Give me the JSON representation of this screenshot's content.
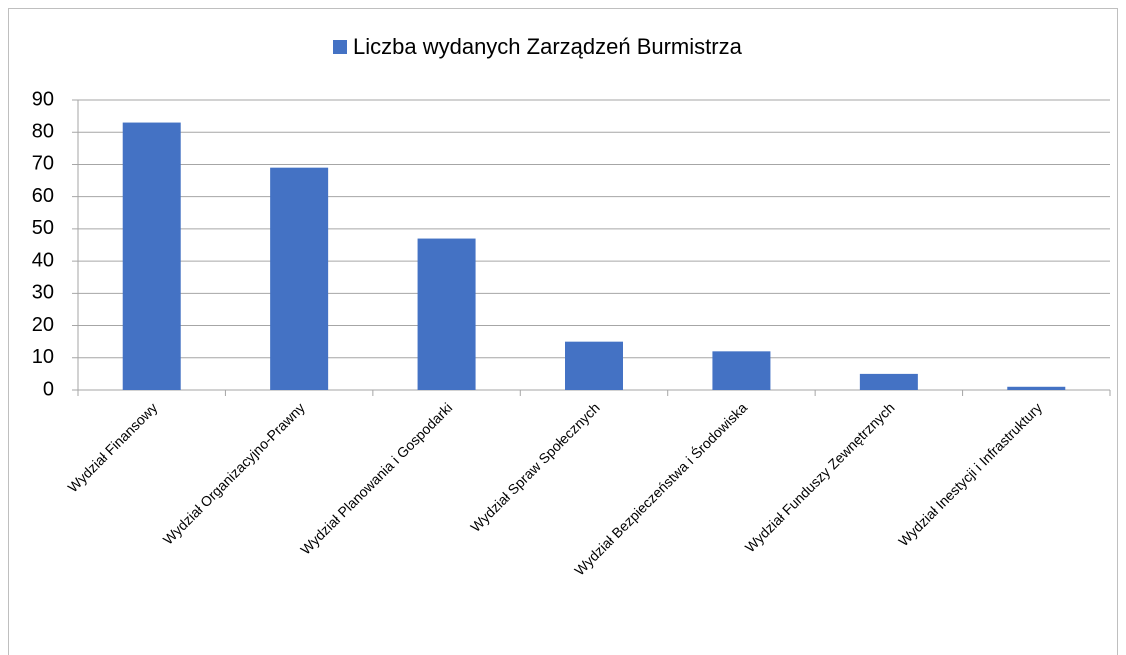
{
  "chart_data": {
    "type": "bar",
    "categories": [
      "Wydział Finansowy",
      "Wydział Organizacyjno-Prawny",
      "Wydział Planowania i Gospodarki",
      "Wydział Spraw Społecznych",
      "Wydział Bezpieczeństwa i Środowiska",
      "Wydział Funduszy Zewnętrznych",
      "Wydział Inestycji i Infrastruktury"
    ],
    "series": [
      {
        "name": "Liczba wydanych Zarządzeń Burmistrza",
        "color": "#4472c4",
        "values": [
          83,
          69,
          47,
          15,
          12,
          5,
          1
        ]
      }
    ],
    "ylim": [
      0,
      90
    ],
    "yticks": [
      0,
      10,
      20,
      30,
      40,
      50,
      60,
      70,
      80,
      90
    ],
    "grid": true,
    "legend": "top"
  }
}
